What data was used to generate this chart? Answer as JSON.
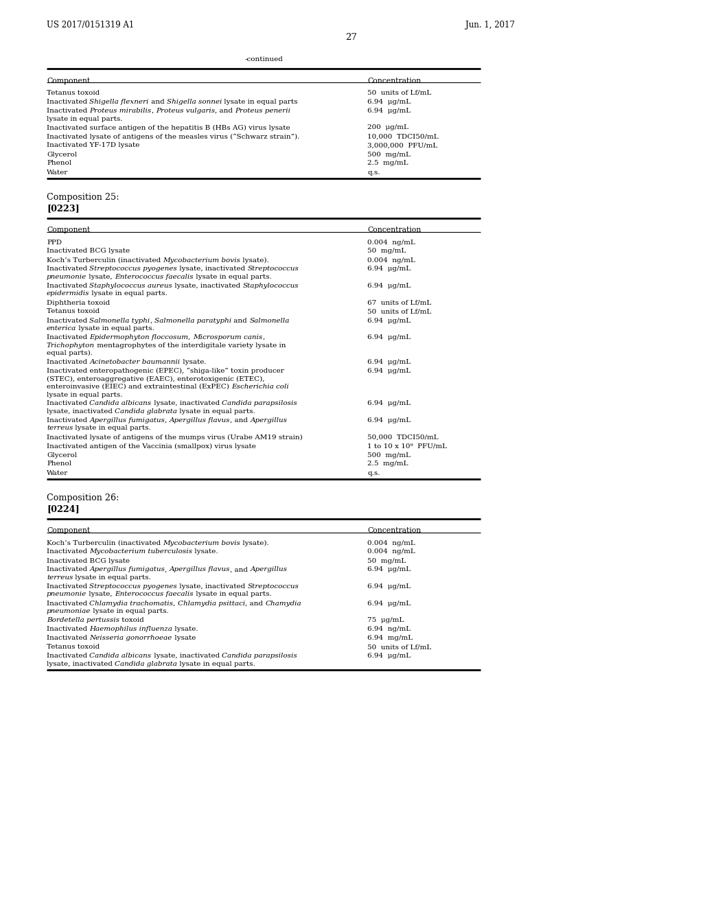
{
  "page_header_left": "US 2017/0151319 A1",
  "page_header_right": "Jun. 1, 2017",
  "page_number": "27",
  "background_color": "#ffffff",
  "continued_label": "-continued",
  "sections": [
    {
      "type": "continued_table",
      "columns": [
        "Component",
        "Concentration"
      ],
      "rows": [
        [
          [
            "Tetanus toxoid"
          ],
          "50  units of Lf/mL"
        ],
        [
          [
            "Inactivated ",
            "I",
            "Shigella flexneri",
            "N",
            " and ",
            "I",
            "Shigella sonnei",
            "N",
            " lysate in equal parts"
          ],
          "6.94  μg/mL"
        ],
        [
          [
            "Inactivated ",
            "I",
            "Proteus mirabilis",
            "N",
            ", ",
            "I",
            "Proteus vulgaris",
            "N",
            ", and ",
            "I",
            "Proteus penerii",
            "N",
            "||lysate in equal parts."
          ],
          "6.94  μg/mL"
        ],
        [
          [
            "Inactivated surface antigen of the hepatitis B (HBs AG) virus lysate"
          ],
          "200  μg/mL"
        ],
        [
          [
            "Inactivated lysate of antigens of the measles virus (“Schwarz strain”)."
          ],
          "10,000  TDCI50/mL"
        ],
        [
          [
            "Inactivated YF-17D lysate"
          ],
          "3,000,000  PFU/mL"
        ],
        [
          [
            "Glycerol"
          ],
          "500  mg/mL"
        ],
        [
          [
            "Phenol"
          ],
          "2.5  mg/mL"
        ],
        [
          [
            "Water"
          ],
          "q.s."
        ]
      ]
    },
    {
      "type": "composition_header",
      "title": "Composition 25:",
      "paragraph": "[0223]"
    },
    {
      "type": "table",
      "columns": [
        "Component",
        "Concentration"
      ],
      "rows": [
        [
          [
            "PPD"
          ],
          "0.004  ng/mL"
        ],
        [
          [
            "Inactivated BCG lysate"
          ],
          "50  mg/mL"
        ],
        [
          [
            "Koch’s Turberculin (inactivated ",
            "I",
            "Mycobacterium bovis",
            "N",
            " lysate)."
          ],
          "0.004  ng/mL"
        ],
        [
          [
            "Inactivated ",
            "I",
            "Streptococcus pyogenes",
            "N",
            " lysate, inactivated ",
            "I",
            "Streptococcus",
            "N",
            "||",
            "I",
            "pneumonie",
            "N",
            " lysate, ",
            "I",
            "Enterococcus faecalis",
            "N",
            " lysate in equal parts."
          ],
          "6.94  μg/mL"
        ],
        [
          [
            "Inactivated ",
            "I",
            "Staphylococcus aureus",
            "N",
            " lysate, inactivated ",
            "I",
            "Staphylococcus",
            "N",
            "||",
            "I",
            "epidermidis",
            "N",
            " lysate in equal parts."
          ],
          "6.94  μg/mL"
        ],
        [
          [
            "Diphtheria toxoid"
          ],
          "67  units of Lf/mL"
        ],
        [
          [
            "Tetanus toxoid"
          ],
          "50  units of Lf/mL"
        ],
        [
          [
            "Inactivated ",
            "I",
            "Salmonella typhi",
            "N",
            ", ",
            "I",
            "Salmonella paratyphi",
            "N",
            " and ",
            "I",
            "Salmonella",
            "N",
            "||",
            "I",
            "enterica",
            "N",
            " lysate in equal parts."
          ],
          "6.94  μg/mL"
        ],
        [
          [
            "Inactivated ",
            "I",
            "Epidermophyton floccosum",
            "N",
            ", ",
            "I",
            "Microsporum canis",
            "N",
            ",||",
            "I",
            "Trichophyton",
            "N",
            " mentagrophytes of the interdigitale variety lysate in||equal parts)."
          ],
          "6.94  μg/mL"
        ],
        [
          [
            "Inactivated ",
            "I",
            "Acinetobacter baumannii",
            "N",
            " lysate."
          ],
          "6.94  μg/mL"
        ],
        [
          [
            "Inactivated enteropathogenic (EPEC), “shiga-like” toxin producer||(STEC), enteroaggregative (EAEC), enterotoxigenic (ETEC),||enteroinvasive (EIEC) and extraintestinal (ExPEC) ",
            "I",
            "Escherichia coli",
            "N",
            "||lysate in equal parts."
          ],
          "6.94  μg/mL"
        ],
        [
          [
            "Inactivated ",
            "I",
            "Candida albicans",
            "N",
            " lysate, inactivated ",
            "I",
            "Candida parapsilosis",
            "N",
            "||lysate, inactivated ",
            "I",
            "Candida glabrata",
            "N",
            " lysate in equal parts."
          ],
          "6.94  μg/mL"
        ],
        [
          [
            "Inactivated ",
            "I",
            "Apergillus fumigatus",
            "N",
            ", ",
            "I",
            "Apergillus flavus",
            "N",
            ", and ",
            "I",
            "Apergillus",
            "N",
            "||",
            "I",
            "terreus",
            "N",
            " lysate in equal parts."
          ],
          "6.94  μg/mL"
        ],
        [
          [
            "Inactivated lysate of antigens of the mumps virus (Urabe AM19 strain)"
          ],
          "50,000  TDCI50/mL"
        ],
        [
          [
            "Inactivated antigen of the Vaccinia (smallpox) virus lysate"
          ],
          "1 to 10 x 10⁹  PFU/mL"
        ],
        [
          [
            "Glycerol"
          ],
          "500  mg/mL"
        ],
        [
          [
            "Phenol"
          ],
          "2.5  mg/mL"
        ],
        [
          [
            "Water"
          ],
          "q.s."
        ]
      ]
    },
    {
      "type": "composition_header",
      "title": "Composition 26:",
      "paragraph": "[0224]"
    },
    {
      "type": "table",
      "columns": [
        "Component",
        "Concentration"
      ],
      "rows": [
        [
          [
            "Koch’s Turberculin (inactivated ",
            "I",
            "Mycobacterium bovis",
            "N",
            " lysate)."
          ],
          "0.004  ng/mL"
        ],
        [
          [
            "Inactivated ",
            "I",
            "Mycobacterium tuberculosis",
            "N",
            " lysate."
          ],
          "0.004  ng/mL"
        ],
        [
          [
            "Inactivated BCG lysate"
          ],
          "50  mg/mL"
        ],
        [
          [
            "Inactivated ",
            "I",
            "Apergillus fumigatus",
            "N",
            ", ",
            "I",
            "Apergillus flavus",
            "N",
            ", and ",
            "I",
            "Apergillus",
            "N",
            "||",
            "I",
            "terreus",
            "N",
            " lysate in equal parts."
          ],
          "6.94  μg/mL"
        ],
        [
          [
            "Inactivated ",
            "I",
            "Streptococcus pyogenes",
            "N",
            " lysate, inactivated ",
            "I",
            "Streptococcus",
            "N",
            "||",
            "I",
            "pneumonie",
            "N",
            " lysate, ",
            "I",
            "Enterococcus faecalis",
            "N",
            " lysate in equal parts."
          ],
          "6.94  μg/mL"
        ],
        [
          [
            "Inactivated ",
            "I",
            "Chlamydia trachomatis",
            "N",
            ", ",
            "I",
            "Chlamydia psittaci",
            "N",
            ", and ",
            "I",
            "Chamydia",
            "N",
            "||",
            "I",
            "pneumoniae",
            "N",
            " lysate in equal parts."
          ],
          "6.94  μg/mL"
        ],
        [
          [
            "",
            "I",
            "Bordetella pertussis",
            "N",
            " toxoid"
          ],
          "75  μg/mL"
        ],
        [
          [
            "Inactivated ",
            "I",
            "Haemophilus influenza",
            "N",
            " lysate."
          ],
          "6.94  ng/mL"
        ],
        [
          [
            "Inactivated ",
            "I",
            "Neisseria gonorrhoeae",
            "N",
            " lysate"
          ],
          "6.94  mg/mL"
        ],
        [
          [
            "Tetanus toxoid"
          ],
          "50  units of Lf/mL"
        ],
        [
          [
            "Inactivated ",
            "I",
            "Candida albicans",
            "N",
            " lysate, inactivated ",
            "I",
            "Candida parapsilosis",
            "N",
            "||lysate, inactivated ",
            "I",
            "Candida glabrata",
            "N",
            " lysate in equal parts."
          ],
          "6.94  μg/mL"
        ]
      ]
    }
  ]
}
